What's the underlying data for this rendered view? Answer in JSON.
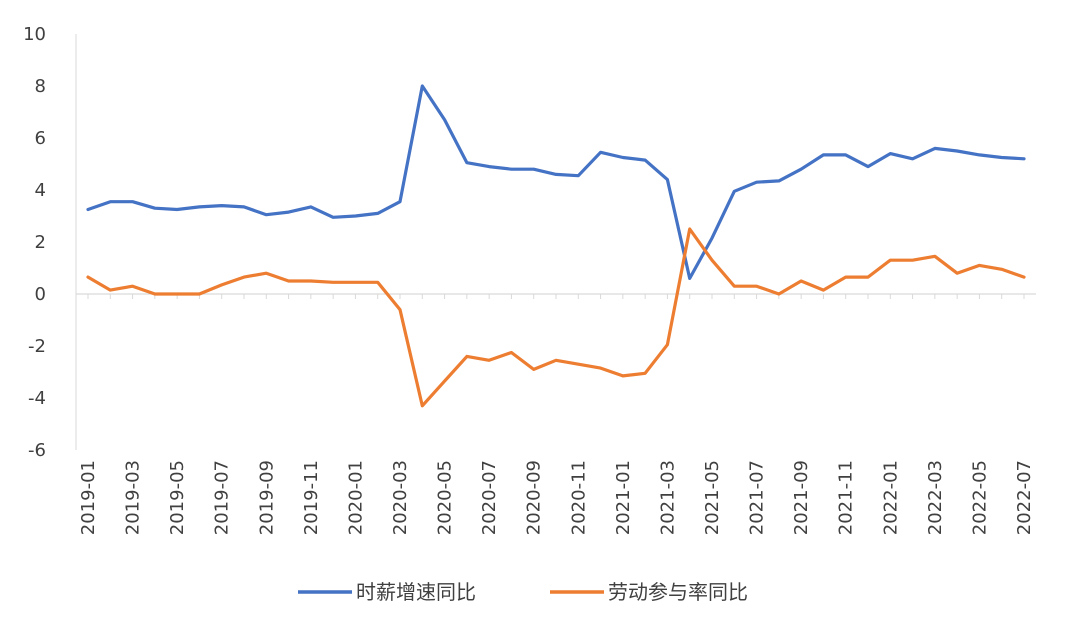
{
  "chart_data": {
    "type": "line",
    "title": "",
    "xlabel": "",
    "ylabel": "",
    "ylim": [
      -6,
      10
    ],
    "yticks": [
      "10",
      "8",
      "6",
      "4",
      "2",
      "0",
      "-2",
      "-4",
      "-6"
    ],
    "x": [
      "2019-01",
      "2019-02",
      "2019-03",
      "2019-04",
      "2019-05",
      "2019-06",
      "2019-07",
      "2019-08",
      "2019-09",
      "2019-10",
      "2019-11",
      "2019-12",
      "2020-01",
      "2020-02",
      "2020-03",
      "2020-04",
      "2020-05",
      "2020-06",
      "2020-07",
      "2020-08",
      "2020-09",
      "2020-10",
      "2020-11",
      "2020-12",
      "2021-01",
      "2021-02",
      "2021-03",
      "2021-04",
      "2021-05",
      "2021-06",
      "2021-07",
      "2021-08",
      "2021-09",
      "2021-10",
      "2021-11",
      "2021-12",
      "2022-01",
      "2022-02",
      "2022-03",
      "2022-04",
      "2022-05",
      "2022-06",
      "2022-07"
    ],
    "xtick_labels": [
      "2019-01",
      "2019-03",
      "2019-05",
      "2019-07",
      "2019-09",
      "2019-11",
      "2020-01",
      "2020-03",
      "2020-05",
      "2020-07",
      "2020-09",
      "2020-11",
      "2021-01",
      "2021-03",
      "2021-05",
      "2021-07",
      "2021-09",
      "2021-11",
      "2022-01",
      "2022-03",
      "2022-05",
      "2022-07"
    ],
    "series": [
      {
        "name": "时薪增速同比",
        "color": "#4472C4",
        "values": [
          3.25,
          3.55,
          3.55,
          3.3,
          3.25,
          3.35,
          3.4,
          3.35,
          3.05,
          3.15,
          3.35,
          2.95,
          3.0,
          3.1,
          3.55,
          8.0,
          6.7,
          5.05,
          4.9,
          4.8,
          4.8,
          4.6,
          4.55,
          5.45,
          5.25,
          5.15,
          4.4,
          0.6,
          2.15,
          3.95,
          4.3,
          4.35,
          4.8,
          5.35,
          5.35,
          4.9,
          5.4,
          5.2,
          5.6,
          5.5,
          5.35,
          5.25,
          5.2
        ]
      },
      {
        "name": "劳动参与率同比",
        "color": "#ED7D31",
        "values": [
          0.65,
          0.15,
          0.3,
          0.0,
          0.0,
          0.0,
          0.35,
          0.65,
          0.8,
          0.5,
          0.5,
          0.45,
          0.45,
          0.45,
          -0.6,
          -4.3,
          -3.35,
          -2.4,
          -2.55,
          -2.25,
          -2.9,
          -2.55,
          -2.7,
          -2.85,
          -3.15,
          -3.05,
          -1.95,
          2.5,
          1.3,
          0.3,
          0.3,
          0.0,
          0.5,
          0.15,
          0.65,
          0.65,
          1.3,
          1.3,
          1.45,
          0.8,
          1.1,
          0.95,
          0.65
        ]
      }
    ],
    "legend_position": "bottom",
    "grid": false
  }
}
